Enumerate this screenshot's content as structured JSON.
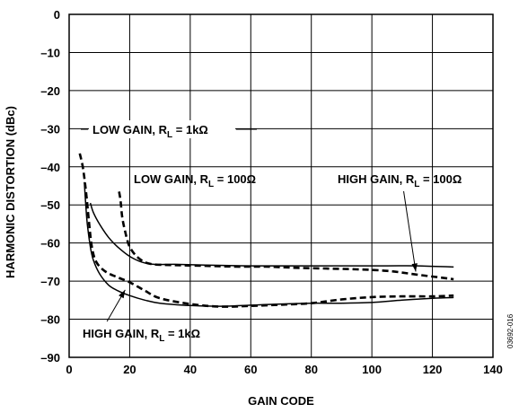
{
  "chart_data": {
    "type": "line",
    "title": "",
    "xlabel": "GAIN CODE",
    "ylabel": "HARMONIC DISTORTION (dBc)",
    "xlim": [
      0,
      140
    ],
    "ylim": [
      -90,
      0
    ],
    "x_ticks": [
      "0",
      "20",
      "40",
      "60",
      "80",
      "100",
      "120",
      "140"
    ],
    "y_ticks": [
      "0",
      "–10",
      "–20",
      "–30",
      "–40",
      "–50",
      "–60",
      "–70",
      "–80",
      "–90"
    ],
    "grid": true,
    "series": [
      {
        "name": "HIGH GAIN, RL = 100Ω",
        "style": "solid",
        "color": "#000000",
        "points": [
          [
            7,
            -49.5
          ],
          [
            8,
            -52
          ],
          [
            10,
            -55
          ],
          [
            13,
            -58.5
          ],
          [
            16,
            -61
          ],
          [
            20,
            -63.5
          ],
          [
            24,
            -65
          ],
          [
            28,
            -65.6
          ],
          [
            35,
            -65.6
          ],
          [
            45,
            -65.8
          ],
          [
            60,
            -66
          ],
          [
            75,
            -66
          ],
          [
            90,
            -66
          ],
          [
            105,
            -66
          ],
          [
            115,
            -66
          ],
          [
            127,
            -66.3
          ]
        ]
      },
      {
        "name": "HIGH GAIN, RL = 1kΩ",
        "style": "solid",
        "color": "#000000",
        "points": [
          [
            5,
            -44
          ],
          [
            5.5,
            -50
          ],
          [
            6,
            -55
          ],
          [
            7,
            -61
          ],
          [
            8,
            -64.5
          ],
          [
            10,
            -68
          ],
          [
            13,
            -71
          ],
          [
            16,
            -72.5
          ],
          [
            20,
            -73.8
          ],
          [
            25,
            -75
          ],
          [
            30,
            -75.8
          ],
          [
            40,
            -76.4
          ],
          [
            50,
            -76.6
          ],
          [
            60,
            -76.3
          ],
          [
            70,
            -76
          ],
          [
            80,
            -75.8
          ],
          [
            90,
            -75.8
          ],
          [
            100,
            -75.6
          ],
          [
            110,
            -75
          ],
          [
            120,
            -74.5
          ],
          [
            127,
            -74.3
          ]
        ]
      },
      {
        "name": "LOW GAIN, RL = 1kΩ",
        "style": "dashed",
        "color": "#000000",
        "points": [
          [
            3.5,
            -36.5
          ],
          [
            4.5,
            -40
          ],
          [
            5.5,
            -46
          ],
          [
            6.5,
            -54
          ],
          [
            7.5,
            -61
          ],
          [
            9,
            -65
          ],
          [
            12,
            -67.5
          ],
          [
            16,
            -69
          ],
          [
            20,
            -70.3
          ],
          [
            25,
            -72.5
          ],
          [
            30,
            -74.5
          ],
          [
            40,
            -76
          ],
          [
            50,
            -76.7
          ],
          [
            60,
            -76.5
          ],
          [
            70,
            -76.2
          ],
          [
            80,
            -75.8
          ],
          [
            90,
            -74.8
          ],
          [
            100,
            -74.2
          ],
          [
            110,
            -74
          ],
          [
            120,
            -74
          ],
          [
            127,
            -73.8
          ]
        ]
      },
      {
        "name": "LOW GAIN, RL = 100Ω",
        "style": "dashed",
        "color": "#000000",
        "points": [
          [
            16.5,
            -46.5
          ],
          [
            17,
            -49
          ],
          [
            17.5,
            -53
          ],
          [
            18.5,
            -57
          ],
          [
            20,
            -61
          ],
          [
            23,
            -64
          ],
          [
            27,
            -65.5
          ],
          [
            35,
            -65.8
          ],
          [
            45,
            -66
          ],
          [
            55,
            -66.2
          ],
          [
            65,
            -66.2
          ],
          [
            75,
            -66.5
          ],
          [
            85,
            -66.7
          ],
          [
            95,
            -66.9
          ],
          [
            105,
            -67.3
          ],
          [
            115,
            -68.3
          ],
          [
            127,
            -69.5
          ]
        ]
      }
    ],
    "annotations": [
      {
        "id": "low_1k",
        "text": "LOW GAIN, R",
        "sub": "L",
        "rest": " = 1kΩ"
      },
      {
        "id": "low_100",
        "text": "LOW GAIN, R",
        "sub": "L",
        "rest": " = 100Ω"
      },
      {
        "id": "high_100",
        "text": "HIGH GAIN, R",
        "sub": "L",
        "rest": " = 100Ω"
      },
      {
        "id": "high_1k",
        "text": "HIGH GAIN, R",
        "sub": "L",
        "rest": " = 1kΩ"
      }
    ],
    "side_code": "03692-016"
  }
}
